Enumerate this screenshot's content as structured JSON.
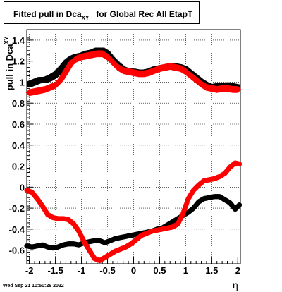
{
  "chart_data": {
    "type": "scatter",
    "title": "Fitted pull in Dca",
    "title_subscript": "XY",
    "title_rest": "for Global Rec All EtapT",
    "ylabel": "pull in Dca",
    "ylabel_subscript": "XY",
    "xlabel": "η",
    "xlim": [
      -2.05,
      2.05
    ],
    "ylim": [
      -0.73,
      1.5
    ],
    "grid": true,
    "x_ticks": [
      "-2",
      "-1.5",
      "-1",
      "-0.5",
      "0",
      "0.5",
      "1",
      "1.5",
      "2"
    ],
    "x_tick_values": [
      -2,
      -1.5,
      -1,
      -0.5,
      0,
      0.5,
      1,
      1.5,
      2
    ],
    "y_ticks": [
      "-0.6",
      "-0.4",
      "-0.2",
      "0",
      "0.2",
      "0.4",
      "0.6",
      "0.8",
      "1",
      "1.2",
      "1.4"
    ],
    "y_tick_values": [
      -0.6,
      -0.4,
      -0.2,
      0,
      0.2,
      0.4,
      0.6,
      0.8,
      1,
      1.2,
      1.4
    ],
    "series": [
      {
        "color": "#000000",
        "marker": "square",
        "x": [
          -2.0,
          -1.9,
          -1.8,
          -1.7,
          -1.6,
          -1.5,
          -1.4,
          -1.3,
          -1.2,
          -1.1,
          -1.0,
          -0.9,
          -0.8,
          -0.7,
          -0.6,
          -0.5,
          -0.4,
          -0.3,
          -0.2,
          -0.1,
          0.0,
          0.1,
          0.2,
          0.3,
          0.4,
          0.5,
          0.6,
          0.7,
          0.8,
          0.9,
          1.0,
          1.1,
          1.2,
          1.3,
          1.4,
          1.5,
          1.6,
          1.7,
          1.8,
          1.9,
          2.0
        ],
        "y": [
          0.98,
          1.0,
          1.02,
          1.02,
          1.04,
          1.07,
          1.12,
          1.18,
          1.22,
          1.24,
          1.25,
          1.27,
          1.28,
          1.3,
          1.3,
          1.27,
          1.21,
          1.16,
          1.12,
          1.1,
          1.1,
          1.09,
          1.09,
          1.1,
          1.12,
          1.13,
          1.14,
          1.15,
          1.15,
          1.14,
          1.12,
          1.08,
          1.04,
          1.0,
          0.97,
          0.95,
          0.96,
          0.96,
          0.97,
          0.96,
          0.95
        ]
      },
      {
        "color": "#ff0000",
        "marker": "diamond",
        "x": [
          -2.0,
          -1.9,
          -1.8,
          -1.7,
          -1.6,
          -1.5,
          -1.4,
          -1.3,
          -1.2,
          -1.1,
          -1.0,
          -0.9,
          -0.8,
          -0.7,
          -0.6,
          -0.5,
          -0.4,
          -0.3,
          -0.2,
          -0.1,
          0.0,
          0.1,
          0.2,
          0.3,
          0.4,
          0.5,
          0.6,
          0.7,
          0.8,
          0.9,
          1.0,
          1.1,
          1.2,
          1.3,
          1.4,
          1.5,
          1.6,
          1.7,
          1.8,
          1.9,
          2.0
        ],
        "y": [
          0.9,
          0.91,
          0.92,
          0.93,
          0.95,
          0.97,
          1.02,
          1.1,
          1.18,
          1.22,
          1.24,
          1.25,
          1.26,
          1.27,
          1.27,
          1.24,
          1.19,
          1.14,
          1.11,
          1.1,
          1.09,
          1.08,
          1.08,
          1.09,
          1.11,
          1.13,
          1.14,
          1.15,
          1.14,
          1.13,
          1.1,
          1.06,
          1.02,
          0.98,
          0.95,
          0.94,
          0.93,
          0.94,
          0.94,
          0.93,
          0.93
        ]
      },
      {
        "color": "#000000",
        "marker": "circle",
        "x": [
          -2.05,
          -1.95,
          -1.85,
          -1.75,
          -1.65,
          -1.55,
          -1.45,
          -1.35,
          -1.25,
          -1.15,
          -1.05,
          -0.95,
          -0.85,
          -0.75,
          -0.65,
          -0.55,
          -0.45,
          -0.35,
          -0.25,
          -0.15,
          -0.05,
          0.05,
          0.15,
          0.25,
          0.35,
          0.45,
          0.55,
          0.65,
          0.75,
          0.85,
          0.95,
          1.05,
          1.15,
          1.25,
          1.35,
          1.45,
          1.55,
          1.65,
          1.75,
          1.85,
          1.95,
          2.03
        ],
        "y": [
          -0.56,
          -0.57,
          -0.56,
          -0.55,
          -0.57,
          -0.58,
          -0.57,
          -0.55,
          -0.54,
          -0.54,
          -0.55,
          -0.53,
          -0.52,
          -0.51,
          -0.51,
          -0.53,
          -0.51,
          -0.49,
          -0.48,
          -0.47,
          -0.46,
          -0.45,
          -0.44,
          -0.43,
          -0.42,
          -0.4,
          -0.39,
          -0.36,
          -0.33,
          -0.3,
          -0.27,
          -0.24,
          -0.2,
          -0.14,
          -0.11,
          -0.1,
          -0.09,
          -0.09,
          -0.12,
          -0.15,
          -0.21,
          -0.17
        ]
      },
      {
        "color": "#ff0000",
        "marker": "circle",
        "x": [
          -2.05,
          -1.95,
          -1.85,
          -1.75,
          -1.65,
          -1.55,
          -1.45,
          -1.35,
          -1.25,
          -1.15,
          -1.05,
          -0.95,
          -0.85,
          -0.75,
          -0.65,
          -0.55,
          -0.45,
          -0.35,
          -0.25,
          -0.15,
          -0.05,
          0.05,
          0.15,
          0.25,
          0.35,
          0.45,
          0.55,
          0.65,
          0.75,
          0.85,
          0.95,
          1.05,
          1.15,
          1.25,
          1.35,
          1.45,
          1.55,
          1.65,
          1.75,
          1.85,
          1.95,
          2.03
        ],
        "y": [
          -0.03,
          -0.05,
          -0.11,
          -0.18,
          -0.26,
          -0.29,
          -0.3,
          -0.3,
          -0.31,
          -0.35,
          -0.42,
          -0.52,
          -0.6,
          -0.68,
          -0.7,
          -0.67,
          -0.64,
          -0.61,
          -0.59,
          -0.57,
          -0.54,
          -0.5,
          -0.46,
          -0.44,
          -0.42,
          -0.41,
          -0.4,
          -0.39,
          -0.38,
          -0.35,
          -0.25,
          -0.11,
          -0.03,
          0.02,
          0.06,
          0.07,
          0.08,
          0.1,
          0.13,
          0.19,
          0.23,
          0.22
        ]
      }
    ]
  },
  "footer": {
    "timestamp": "Wed Sep 21 10:50:26 2022"
  }
}
